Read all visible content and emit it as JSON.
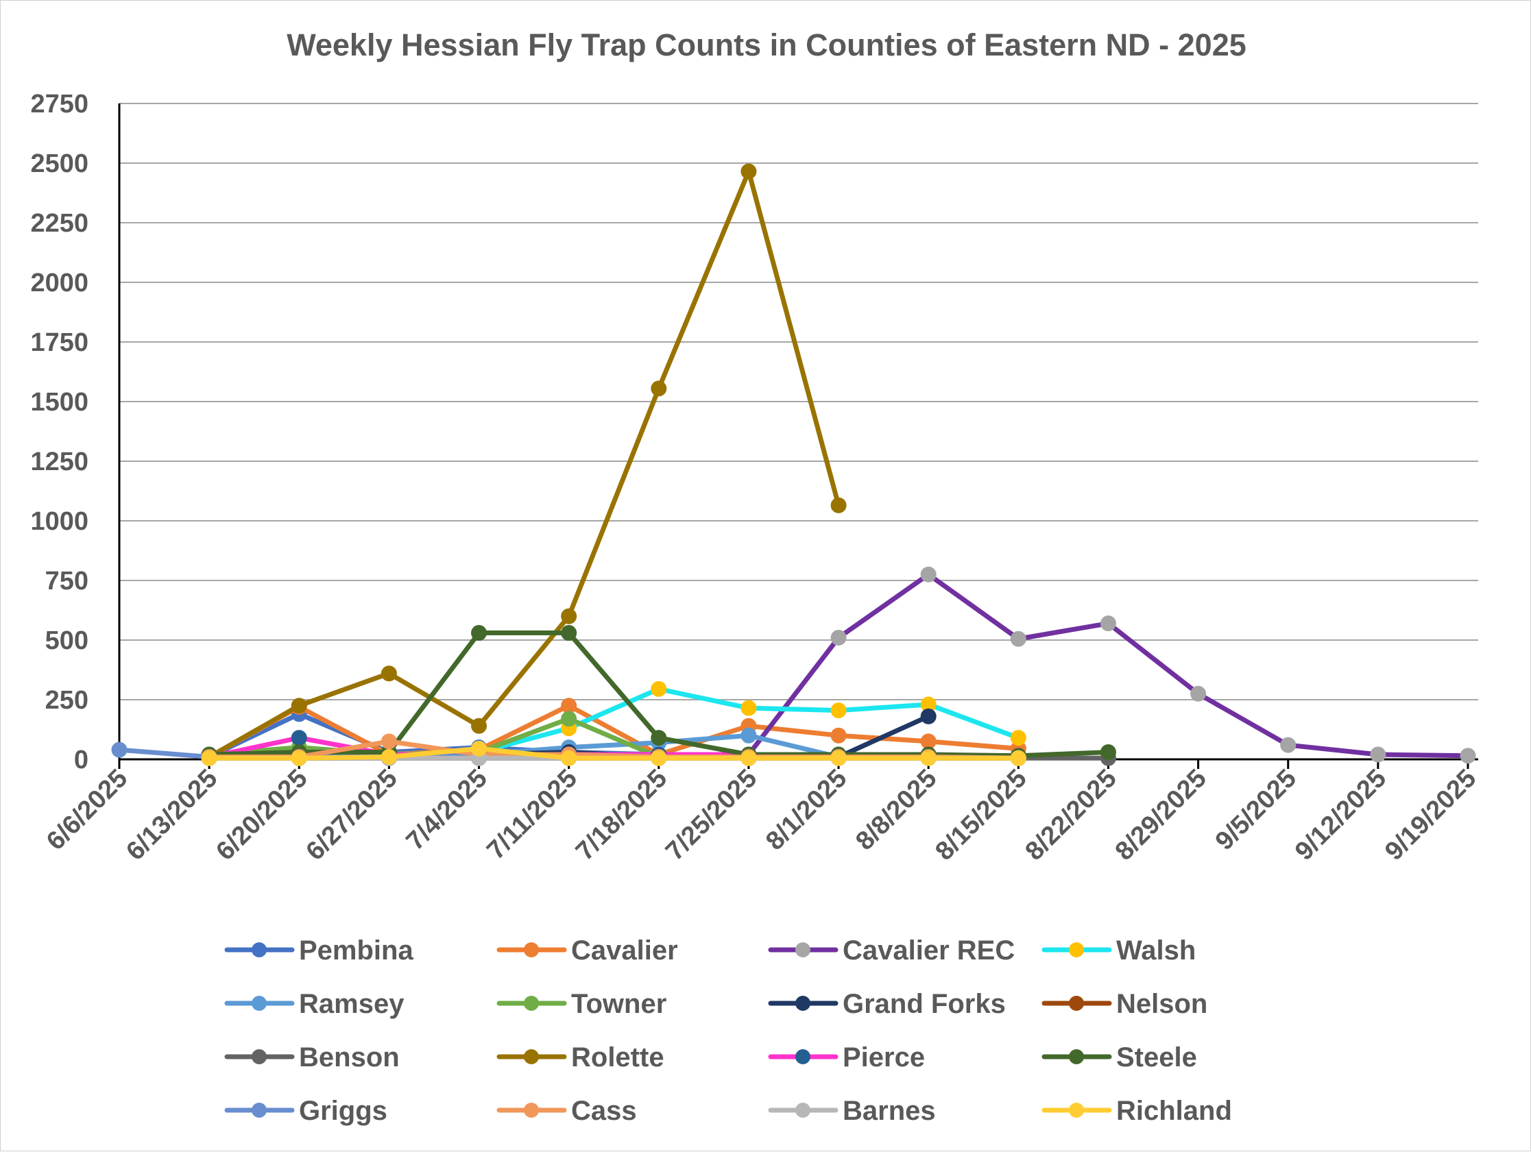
{
  "chart_data": {
    "type": "line",
    "title": "Weekly Hessian Fly Trap Counts in Counties of Eastern ND - 2025",
    "xlabel": "",
    "ylabel": "",
    "ylim": [
      0,
      2750
    ],
    "yticks": [
      "0",
      "250",
      "500",
      "750",
      "1000",
      "1250",
      "1500",
      "1750",
      "2000",
      "2250",
      "2500",
      "2750"
    ],
    "categories": [
      "6/6/2025",
      "6/13/2025",
      "6/20/2025",
      "6/27/2025",
      "7/4/2025",
      "7/11/2025",
      "7/18/2025",
      "7/25/2025",
      "8/1/2025",
      "8/8/2025",
      "8/15/2025",
      "8/22/2025",
      "8/29/2025",
      "9/5/2025",
      "9/12/2025",
      "9/19/2025"
    ],
    "grid": "horizontal",
    "legend_position": "bottom",
    "series": [
      {
        "name": "Pembina",
        "line_color": "#4472C4",
        "marker_color": "#4472C4",
        "values": [
          null,
          10,
          190,
          30,
          50,
          30,
          20,
          20,
          10,
          10,
          5,
          null,
          null,
          null,
          null,
          null
        ]
      },
      {
        "name": "Cavalier",
        "line_color": "#ED7D31",
        "marker_color": "#ED7D31",
        "values": [
          null,
          10,
          220,
          20,
          40,
          225,
          20,
          140,
          100,
          75,
          45,
          null,
          null,
          null,
          null,
          null
        ]
      },
      {
        "name": "Cavalier REC",
        "line_color": "#7030A0",
        "marker_color": "#A5A5A5",
        "values": [
          null,
          null,
          null,
          null,
          null,
          null,
          null,
          20,
          510,
          775,
          505,
          570,
          275,
          60,
          20,
          15
        ]
      },
      {
        "name": "Walsh",
        "line_color": "#1CE6F0",
        "marker_color": "#FFC000",
        "values": [
          null,
          10,
          50,
          20,
          30,
          130,
          295,
          215,
          205,
          230,
          90,
          null,
          null,
          null,
          null,
          null
        ]
      },
      {
        "name": "Ramsey",
        "line_color": "#5B9BD5",
        "marker_color": "#5B9BD5",
        "values": [
          null,
          10,
          20,
          10,
          20,
          50,
          70,
          100,
          10,
          10,
          5,
          null,
          null,
          null,
          null,
          null
        ]
      },
      {
        "name": "Towner",
        "line_color": "#70AD47",
        "marker_color": "#70AD47",
        "values": [
          null,
          20,
          50,
          20,
          30,
          170,
          10,
          10,
          10,
          10,
          5,
          null,
          null,
          null,
          null,
          null
        ]
      },
      {
        "name": "Grand Forks",
        "line_color": "#203864",
        "marker_color": "#203864",
        "values": [
          null,
          10,
          20,
          10,
          20,
          30,
          10,
          10,
          10,
          180,
          null,
          null,
          null,
          null,
          null,
          null
        ]
      },
      {
        "name": "Nelson",
        "line_color": "#9E480E",
        "marker_color": "#9E480E",
        "values": [
          null,
          5,
          5,
          5,
          5,
          5,
          5,
          5,
          5,
          5,
          5,
          null,
          null,
          null,
          null,
          null
        ]
      },
      {
        "name": "Benson",
        "line_color": "#636363",
        "marker_color": "#636363",
        "values": [
          null,
          5,
          5,
          5,
          5,
          5,
          5,
          5,
          5,
          5,
          5,
          5,
          null,
          null,
          null,
          null
        ]
      },
      {
        "name": "Rolette",
        "line_color": "#997300",
        "marker_color": "#997300",
        "values": [
          null,
          10,
          225,
          360,
          140,
          600,
          1555,
          2465,
          1065,
          null,
          null,
          null,
          null,
          null,
          null,
          null
        ]
      },
      {
        "name": "Pierce",
        "line_color": "#FF33CC",
        "marker_color": "#255E91",
        "values": [
          null,
          10,
          90,
          20,
          20,
          20,
          20,
          20,
          20,
          20,
          10,
          null,
          null,
          null,
          null,
          null
        ]
      },
      {
        "name": "Steele",
        "line_color": "#43682B",
        "marker_color": "#43682B",
        "values": [
          null,
          20,
          30,
          30,
          530,
          530,
          90,
          20,
          20,
          20,
          15,
          30,
          null,
          null,
          null,
          null
        ]
      },
      {
        "name": "Griggs",
        "line_color": "#698ED0",
        "marker_color": "#698ED0",
        "values": [
          40,
          10,
          10,
          10,
          20,
          20,
          10,
          10,
          10,
          10,
          5,
          null,
          null,
          null,
          null,
          null
        ]
      },
      {
        "name": "Cass",
        "line_color": "#F1975A",
        "marker_color": "#F1975A",
        "values": [
          null,
          10,
          10,
          75,
          20,
          20,
          10,
          10,
          10,
          10,
          5,
          null,
          null,
          null,
          null,
          null
        ]
      },
      {
        "name": "Barnes",
        "line_color": "#B7B7B7",
        "marker_color": "#B7B7B7",
        "values": [
          null,
          5,
          5,
          5,
          5,
          5,
          5,
          5,
          5,
          5,
          5,
          null,
          null,
          null,
          null,
          null
        ]
      },
      {
        "name": "Richland",
        "line_color": "#FFCD33",
        "marker_color": "#FFCD33",
        "values": [
          null,
          5,
          5,
          10,
          45,
          5,
          5,
          5,
          5,
          5,
          5,
          null,
          null,
          null,
          null,
          null
        ]
      }
    ]
  }
}
